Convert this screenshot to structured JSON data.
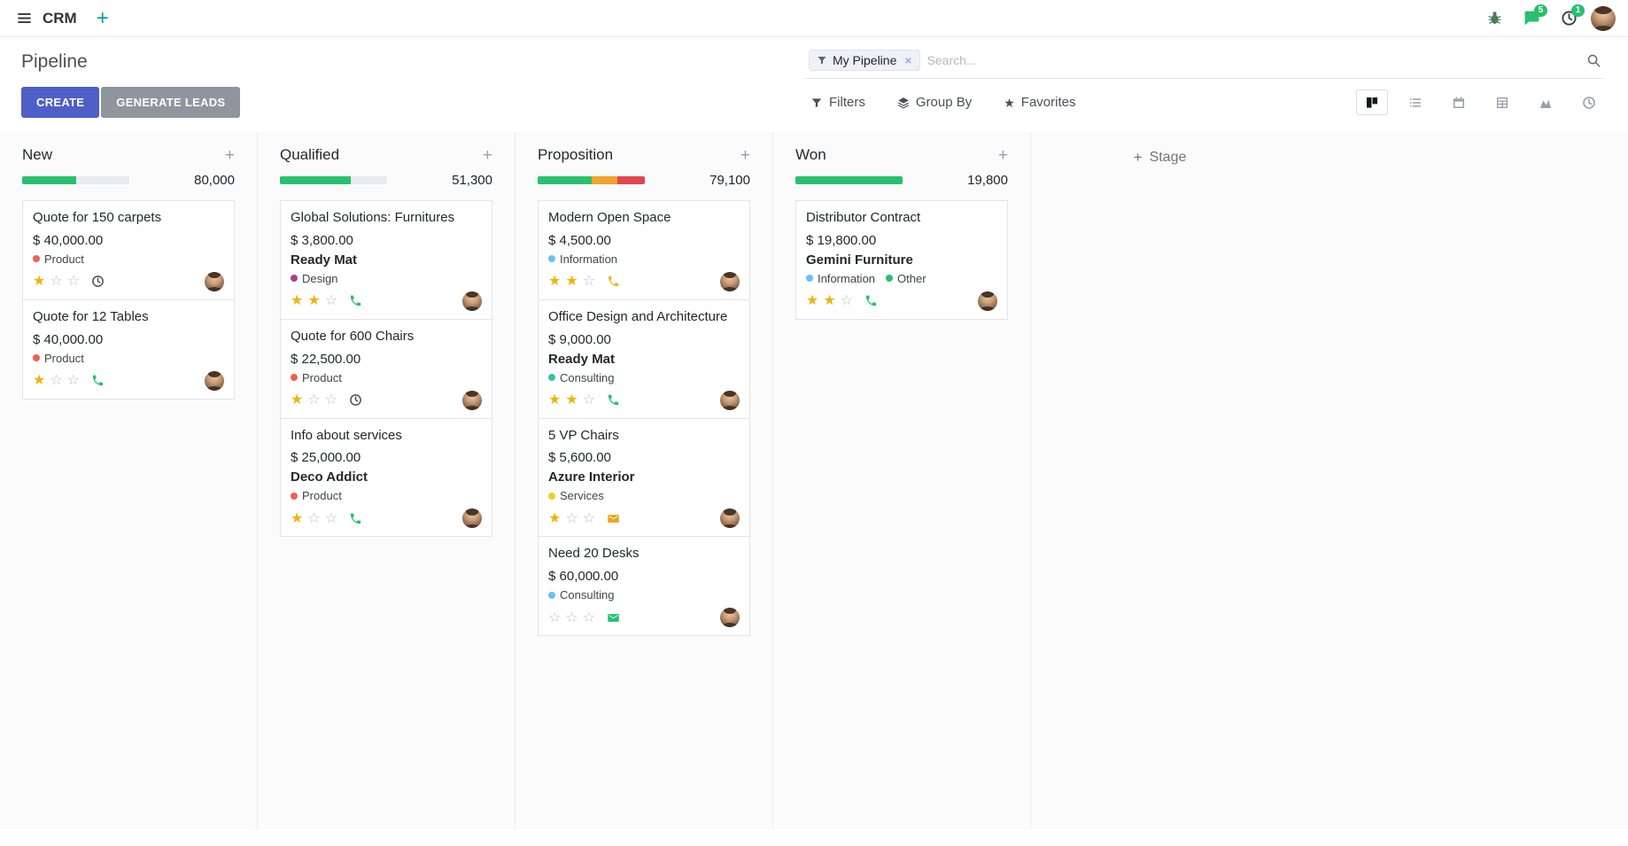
{
  "navbar": {
    "app_name": "CRM",
    "message_badge": "5",
    "activity_badge": "1"
  },
  "control_panel": {
    "title": "Pipeline",
    "create_label": "CREATE",
    "generate_leads_label": "GENERATE LEADS",
    "search": {
      "facet_label": "My Pipeline",
      "placeholder": "Search...",
      "remove_label": "×"
    },
    "filters_label": "Filters",
    "group_by_label": "Group By",
    "favorites_label": "Favorites",
    "view_switcher": [
      {
        "name": "kanban",
        "active": true
      },
      {
        "name": "list",
        "active": false
      },
      {
        "name": "calendar",
        "active": false
      },
      {
        "name": "pivot",
        "active": false
      },
      {
        "name": "graph",
        "active": false
      },
      {
        "name": "activity",
        "active": false
      }
    ]
  },
  "icons": {
    "plus": "+",
    "star_filled": "★",
    "star_empty": "☆"
  },
  "colors": {
    "primary_button": "#4e5fc7",
    "secondary_button": "#8e959d",
    "success": "#28c06f",
    "warning": "#f0a42c",
    "danger": "#e04750",
    "star": "#efb30f"
  },
  "kanban": {
    "add_stage_label": "Stage",
    "columns": [
      {
        "name": "New",
        "total": "80,000",
        "progress": [
          {
            "status": "success",
            "color": "#28c06f",
            "pct": 50
          }
        ],
        "cards": [
          {
            "title": "Quote for 150 carpets",
            "amount": "$ 40,000.00",
            "partner": null,
            "tags": [
              {
                "label": "Product",
                "color": "#f06050"
              }
            ],
            "stars": 1,
            "activity": {
              "icon": "clock-icon",
              "color": "#495057"
            }
          },
          {
            "title": "Quote for 12 Tables",
            "amount": "$ 40,000.00",
            "partner": null,
            "tags": [
              {
                "label": "Product",
                "color": "#f06050"
              }
            ],
            "stars": 1,
            "activity": {
              "icon": "phone-icon",
              "color": "#28c06f"
            }
          }
        ]
      },
      {
        "name": "Qualified",
        "total": "51,300",
        "progress": [
          {
            "status": "success",
            "color": "#28c06f",
            "pct": 66
          }
        ],
        "cards": [
          {
            "title": "Global Solutions: Furnitures",
            "amount": "$ 3,800.00",
            "partner": "Ready Mat",
            "tags": [
              {
                "label": "Design",
                "color": "#a24689"
              }
            ],
            "stars": 2,
            "activity": {
              "icon": "phone-icon",
              "color": "#28c06f"
            }
          },
          {
            "title": "Quote for 600 Chairs",
            "amount": "$ 22,500.00",
            "partner": null,
            "tags": [
              {
                "label": "Product",
                "color": "#f06050"
              }
            ],
            "stars": 1,
            "activity": {
              "icon": "clock-icon",
              "color": "#495057"
            }
          },
          {
            "title": "Info about services",
            "amount": "$ 25,000.00",
            "partner": "Deco Addict",
            "tags": [
              {
                "label": "Product",
                "color": "#f06050"
              }
            ],
            "stars": 1,
            "activity": {
              "icon": "phone-icon",
              "color": "#28c06f"
            }
          }
        ]
      },
      {
        "name": "Proposition",
        "total": "79,100",
        "progress": [
          {
            "status": "success",
            "color": "#28c06f",
            "pct": 50
          },
          {
            "status": "warning",
            "color": "#f0a42c",
            "pct": 24
          },
          {
            "status": "danger",
            "color": "#e04750",
            "pct": 26
          }
        ],
        "cards": [
          {
            "title": "Modern Open Space",
            "amount": "$ 4,500.00",
            "partner": null,
            "tags": [
              {
                "label": "Information",
                "color": "#6cc1ed"
              }
            ],
            "stars": 2,
            "activity": {
              "icon": "phone-icon",
              "color": "#f0b42c"
            }
          },
          {
            "title": "Office Design and Architecture",
            "amount": "$ 9,000.00",
            "partner": "Ready Mat",
            "tags": [
              {
                "label": "Consulting",
                "color": "#30c5a2"
              }
            ],
            "stars": 2,
            "activity": {
              "icon": "phone-icon",
              "color": "#28c06f"
            }
          },
          {
            "title": "5 VP Chairs",
            "amount": "$ 5,600.00",
            "partner": "Azure Interior",
            "tags": [
              {
                "label": "Services",
                "color": "#f7cd1f"
              }
            ],
            "stars": 1,
            "activity": {
              "icon": "envelope-icon",
              "color": "#e9a61f"
            }
          },
          {
            "title": "Need 20 Desks",
            "amount": "$ 60,000.00",
            "partner": null,
            "tags": [
              {
                "label": "Consulting",
                "color": "#6cc1ed"
              }
            ],
            "stars": 0,
            "activity": {
              "icon": "envelope-icon",
              "color": "#28c06f"
            }
          }
        ]
      },
      {
        "name": "Won",
        "total": "19,800",
        "progress": [
          {
            "status": "success",
            "color": "#28c06f",
            "pct": 100
          }
        ],
        "cards": [
          {
            "title": "Distributor Contract",
            "amount": "$ 19,800.00",
            "partner": "Gemini Furniture",
            "tags": [
              {
                "label": "Information",
                "color": "#6cc1ed"
              },
              {
                "label": "Other",
                "color": "#28c06f"
              }
            ],
            "stars": 2,
            "activity": {
              "icon": "phone-icon",
              "color": "#28c06f"
            }
          }
        ]
      }
    ]
  }
}
